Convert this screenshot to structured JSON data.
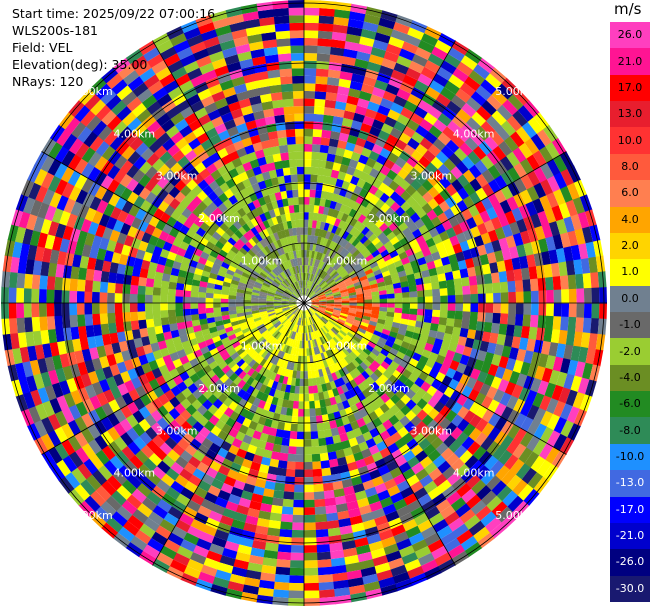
{
  "info": {
    "start_time": "Start time: 2025/09/22 07:00:16",
    "instrument": "WLS200s-181",
    "field": "Field: VEL",
    "elevation": "Elevation(deg): 35.00",
    "nrays": "NRays: 120"
  },
  "range_rings": [
    {
      "km": 1,
      "label": "1.00km"
    },
    {
      "km": 2,
      "label": "2.00km"
    },
    {
      "km": 3,
      "label": "3.00km"
    },
    {
      "km": 4,
      "label": "4.00km"
    },
    {
      "km": 5,
      "label": "5.00km"
    }
  ],
  "colorbar": {
    "unit": "m/s",
    "ticks": [
      "26.0",
      "21.0",
      "17.0",
      "13.0",
      "10.0",
      "8.0",
      "6.0",
      "4.0",
      "2.0",
      "1.0",
      "0.0",
      "-1.0",
      "-2.0",
      "-4.0",
      "-6.0",
      "-8.0",
      "-10.0",
      "-13.0",
      "-17.0",
      "-21.0",
      "-26.0",
      "-30.0"
    ],
    "colors": [
      "#ff3fbf",
      "#ff1493",
      "#ff0000",
      "#e81e2e",
      "#ff3232",
      "#ff5a3c",
      "#ff7f50",
      "#ffa500",
      "#ffd400",
      "#ffff00",
      "#708090",
      "#696969",
      "#9acd32",
      "#6b8e23",
      "#228b22",
      "#2e8b57",
      "#1e90ff",
      "#4169e1",
      "#0000ff",
      "#0000cd",
      "#000080",
      "#191970"
    ]
  }
}
